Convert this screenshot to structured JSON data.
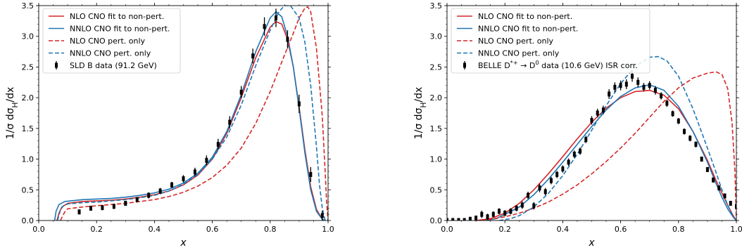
{
  "chart_data": [
    {
      "type": "line",
      "xlabel": "x",
      "ylabel": "1/σ dσ_H/dx",
      "xlim": [
        0.0,
        1.0
      ],
      "ylim": [
        0.0,
        3.5
      ],
      "xticks": [
        "0.0",
        "0.2",
        "0.4",
        "0.6",
        "0.8",
        "1.0"
      ],
      "yticks": [
        "0.0",
        "0.5",
        "1.0",
        "1.5",
        "2.0",
        "2.5",
        "3.0",
        "3.5"
      ],
      "legend_position": "top-left",
      "series": [
        {
          "name": "NLO CNO fit to non-pert.",
          "color": "#d62728",
          "dash": false,
          "x": [
            0.063,
            0.07,
            0.08,
            0.1,
            0.15,
            0.2,
            0.25,
            0.3,
            0.35,
            0.4,
            0.45,
            0.5,
            0.55,
            0.6,
            0.65,
            0.7,
            0.75,
            0.8,
            0.82,
            0.84,
            0.86,
            0.88,
            0.9,
            0.92,
            0.94,
            0.96,
            0.98,
            0.99
          ],
          "y": [
            0.0,
            0.12,
            0.22,
            0.28,
            0.31,
            0.32,
            0.33,
            0.35,
            0.38,
            0.42,
            0.48,
            0.58,
            0.74,
            1.0,
            1.42,
            2.0,
            2.65,
            3.15,
            3.24,
            3.2,
            2.95,
            2.5,
            1.85,
            1.15,
            0.55,
            0.18,
            0.02,
            0.0
          ]
        },
        {
          "name": "NNLO CNO fit to non-pert.",
          "color": "#1f77b4",
          "dash": false,
          "x": [
            0.055,
            0.06,
            0.07,
            0.09,
            0.15,
            0.2,
            0.25,
            0.3,
            0.35,
            0.4,
            0.45,
            0.5,
            0.55,
            0.6,
            0.65,
            0.7,
            0.75,
            0.8,
            0.82,
            0.84,
            0.86,
            0.88,
            0.9,
            0.92,
            0.94,
            0.96,
            0.98,
            0.99
          ],
          "y": [
            0.0,
            0.15,
            0.26,
            0.31,
            0.34,
            0.35,
            0.36,
            0.38,
            0.41,
            0.45,
            0.51,
            0.61,
            0.77,
            1.03,
            1.45,
            2.05,
            2.75,
            3.3,
            3.4,
            3.32,
            3.0,
            2.5,
            1.82,
            1.1,
            0.5,
            0.15,
            0.02,
            0.0
          ]
        },
        {
          "name": "NLO CNO pert. only",
          "color": "#d62728",
          "dash": true,
          "x": [
            0.075,
            0.09,
            0.1,
            0.15,
            0.2,
            0.25,
            0.3,
            0.35,
            0.4,
            0.45,
            0.5,
            0.55,
            0.6,
            0.65,
            0.7,
            0.75,
            0.8,
            0.85,
            0.88,
            0.9,
            0.92,
            0.93,
            0.94,
            0.96,
            0.98,
            0.99,
            0.995,
            1.0
          ],
          "y": [
            0.0,
            0.14,
            0.19,
            0.22,
            0.24,
            0.26,
            0.28,
            0.31,
            0.34,
            0.39,
            0.46,
            0.56,
            0.7,
            0.9,
            1.18,
            1.58,
            2.1,
            2.7,
            3.05,
            3.3,
            3.46,
            3.48,
            3.4,
            2.8,
            1.7,
            0.8,
            0.3,
            0.0
          ]
        },
        {
          "name": "NNLO CNO pert. only",
          "color": "#1f77b4",
          "dash": true,
          "x": [
            0.065,
            0.075,
            0.085,
            0.1,
            0.15,
            0.2,
            0.25,
            0.3,
            0.35,
            0.4,
            0.45,
            0.5,
            0.55,
            0.6,
            0.65,
            0.7,
            0.75,
            0.8,
            0.83,
            0.85,
            0.87,
            0.9,
            0.92,
            0.94,
            0.96,
            0.97,
            0.98,
            0.99
          ],
          "y": [
            0.0,
            0.17,
            0.24,
            0.27,
            0.29,
            0.3,
            0.32,
            0.34,
            0.37,
            0.41,
            0.48,
            0.59,
            0.75,
            1.0,
            1.36,
            1.88,
            2.52,
            3.1,
            3.4,
            3.5,
            3.5,
            3.3,
            2.9,
            2.2,
            1.2,
            0.6,
            0.2,
            0.0
          ]
        }
      ],
      "data_series": {
        "name": "SLD B data (91.2 GeV)",
        "color": "#000000",
        "x": [
          0.14,
          0.18,
          0.22,
          0.26,
          0.3,
          0.34,
          0.38,
          0.42,
          0.46,
          0.5,
          0.54,
          0.58,
          0.62,
          0.66,
          0.7,
          0.74,
          0.78,
          0.82,
          0.86,
          0.9,
          0.94,
          0.98
        ],
        "y": [
          0.14,
          0.2,
          0.21,
          0.23,
          0.28,
          0.34,
          0.41,
          0.48,
          0.58,
          0.68,
          0.79,
          0.98,
          1.24,
          1.6,
          2.09,
          2.68,
          3.16,
          3.3,
          2.95,
          1.9,
          0.75,
          0.08
        ],
        "err": [
          0.04,
          0.04,
          0.04,
          0.04,
          0.04,
          0.04,
          0.05,
          0.05,
          0.05,
          0.06,
          0.07,
          0.08,
          0.09,
          0.1,
          0.1,
          0.12,
          0.15,
          0.15,
          0.15,
          0.15,
          0.12,
          0.08
        ]
      }
    },
    {
      "type": "line",
      "xlabel": "x",
      "ylabel": "1/σ dσ_H/dx",
      "xlim": [
        0.0,
        1.0
      ],
      "ylim": [
        0.0,
        3.5
      ],
      "xticks": [
        "0.0",
        "0.2",
        "0.4",
        "0.6",
        "0.8",
        "1.0"
      ],
      "yticks": [
        "0.0",
        "0.5",
        "1.0",
        "1.5",
        "2.0",
        "2.5",
        "3.0",
        "3.5"
      ],
      "legend_position": "top-left",
      "series": [
        {
          "name": "NLO CNO fit to non-pert.",
          "color": "#d62728",
          "dash": false,
          "x": [
            0.1,
            0.15,
            0.2,
            0.25,
            0.3,
            0.35,
            0.4,
            0.45,
            0.5,
            0.55,
            0.6,
            0.65,
            0.7,
            0.75,
            0.8,
            0.85,
            0.9,
            0.93,
            0.95,
            0.97,
            0.99,
            1.0
          ],
          "y": [
            0.0,
            0.03,
            0.12,
            0.28,
            0.5,
            0.76,
            1.04,
            1.33,
            1.6,
            1.83,
            2.0,
            2.1,
            2.12,
            2.04,
            1.82,
            1.45,
            0.98,
            0.65,
            0.45,
            0.25,
            0.07,
            0.0
          ]
        },
        {
          "name": "NNLO CNO fit to non-pert.",
          "color": "#1f77b4",
          "dash": false,
          "x": [
            0.13,
            0.17,
            0.2,
            0.25,
            0.3,
            0.35,
            0.4,
            0.45,
            0.5,
            0.55,
            0.6,
            0.65,
            0.7,
            0.75,
            0.8,
            0.85,
            0.9,
            0.93,
            0.95,
            0.97,
            0.99,
            1.0
          ],
          "y": [
            0.0,
            0.03,
            0.1,
            0.22,
            0.42,
            0.67,
            0.95,
            1.24,
            1.53,
            1.8,
            2.02,
            2.16,
            2.21,
            2.12,
            1.86,
            1.45,
            0.95,
            0.6,
            0.38,
            0.19,
            0.05,
            0.0
          ]
        },
        {
          "name": "NLO CNO pert. only",
          "color": "#d62728",
          "dash": true,
          "x": [
            0.12,
            0.15,
            0.2,
            0.25,
            0.3,
            0.35,
            0.4,
            0.45,
            0.5,
            0.55,
            0.6,
            0.65,
            0.7,
            0.75,
            0.8,
            0.85,
            0.9,
            0.93,
            0.95,
            0.97,
            0.985,
            0.995,
            1.0
          ],
          "y": [
            0.0,
            0.02,
            0.06,
            0.12,
            0.2,
            0.3,
            0.43,
            0.58,
            0.76,
            0.96,
            1.18,
            1.42,
            1.68,
            1.94,
            2.16,
            2.32,
            2.4,
            2.42,
            2.38,
            2.15,
            1.6,
            0.8,
            0.0
          ]
        },
        {
          "name": "NNLO CNO pert. only",
          "color": "#1f77b4",
          "dash": true,
          "x": [
            0.18,
            0.22,
            0.25,
            0.3,
            0.35,
            0.4,
            0.45,
            0.5,
            0.55,
            0.6,
            0.65,
            0.7,
            0.73,
            0.76,
            0.8,
            0.85,
            0.9,
            0.93,
            0.95,
            0.97,
            0.99,
            1.0
          ],
          "y": [
            0.0,
            0.03,
            0.08,
            0.22,
            0.44,
            0.73,
            1.08,
            1.47,
            1.87,
            2.23,
            2.51,
            2.66,
            2.67,
            2.6,
            2.35,
            1.82,
            1.18,
            0.78,
            0.5,
            0.25,
            0.05,
            0.0
          ]
        }
      ],
      "data_series": {
        "name": "BELLE D^{*+} → D^0 data (10.6 GeV) ISR corr.",
        "color": "#000000",
        "x": [
          0.0,
          0.02,
          0.04,
          0.06,
          0.08,
          0.1,
          0.12,
          0.14,
          0.16,
          0.18,
          0.2,
          0.22,
          0.24,
          0.26,
          0.28,
          0.3,
          0.32,
          0.34,
          0.36,
          0.38,
          0.4,
          0.42,
          0.44,
          0.46,
          0.48,
          0.5,
          0.52,
          0.54,
          0.56,
          0.58,
          0.6,
          0.62,
          0.64,
          0.66,
          0.68,
          0.7,
          0.72,
          0.74,
          0.76,
          0.78,
          0.8,
          0.82,
          0.84,
          0.86,
          0.88,
          0.9,
          0.92,
          0.94,
          0.96,
          0.98,
          1.0
        ],
        "y": [
          0.0,
          0.0,
          0.0,
          0.0,
          0.02,
          0.04,
          0.1,
          0.06,
          0.1,
          0.15,
          0.12,
          0.15,
          0.2,
          0.25,
          0.41,
          0.24,
          0.53,
          0.47,
          0.65,
          0.75,
          0.84,
          0.95,
          1.08,
          1.13,
          1.32,
          1.63,
          1.75,
          1.8,
          2.06,
          2.17,
          2.2,
          2.22,
          2.35,
          2.25,
          2.17,
          2.2,
          2.12,
          2.03,
          1.91,
          1.74,
          1.62,
          1.45,
          1.34,
          1.24,
          1.0,
          0.83,
          0.66,
          0.53,
          0.4,
          0.28,
          0.23
        ],
        "err": [
          0.02,
          0.02,
          0.02,
          0.02,
          0.03,
          0.04,
          0.06,
          0.05,
          0.05,
          0.05,
          0.05,
          0.05,
          0.05,
          0.06,
          0.06,
          0.06,
          0.07,
          0.06,
          0.06,
          0.06,
          0.06,
          0.06,
          0.06,
          0.06,
          0.06,
          0.07,
          0.07,
          0.07,
          0.08,
          0.08,
          0.08,
          0.08,
          0.09,
          0.08,
          0.07,
          0.07,
          0.07,
          0.06,
          0.06,
          0.05,
          0.05,
          0.05,
          0.05,
          0.05,
          0.04,
          0.04,
          0.04,
          0.04,
          0.03,
          0.03,
          0.03
        ]
      }
    }
  ]
}
